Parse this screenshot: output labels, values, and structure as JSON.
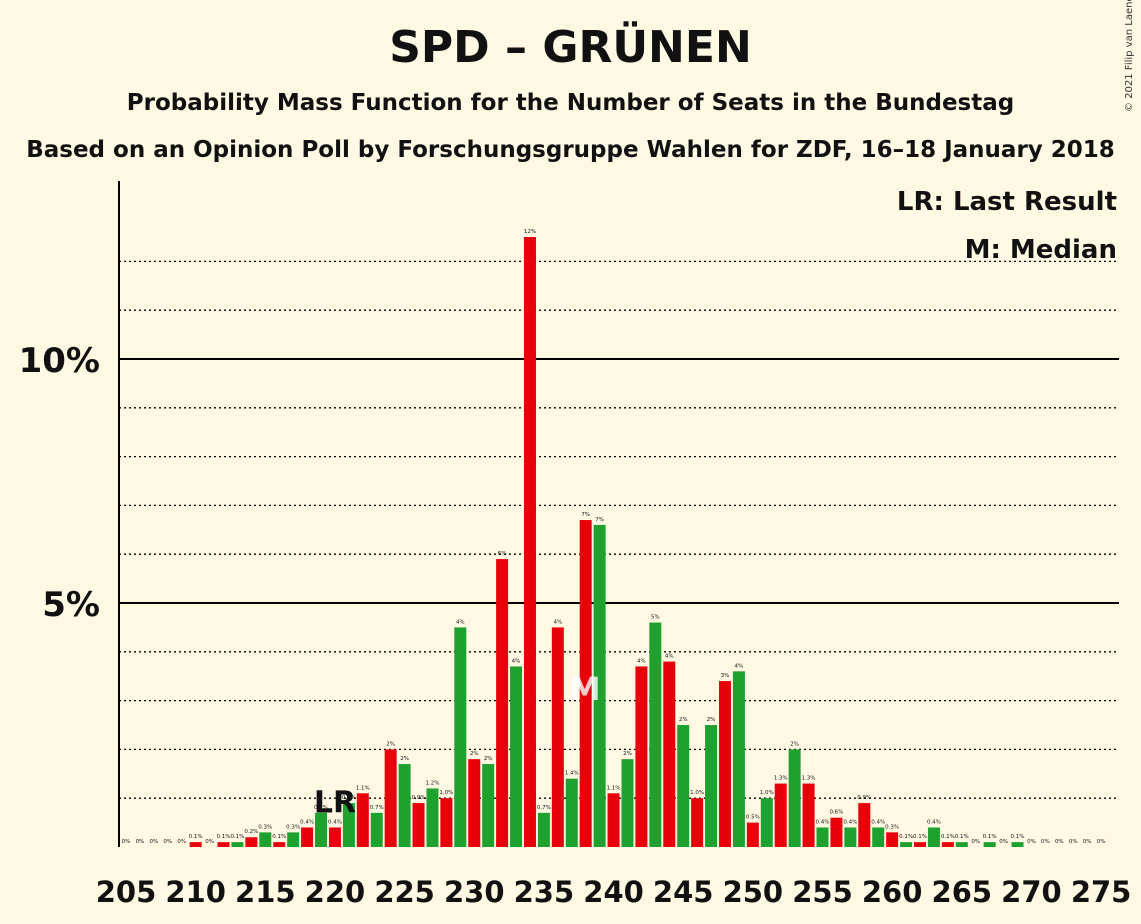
{
  "title": "SPD – GRÜNEN",
  "subtitle": "Probability Mass Function for the Number of Seats in the Bundestag",
  "subtitle2": "Based on an Opinion Poll by Forschungsgruppe Wahlen for ZDF, 16–18 January 2018",
  "copyright": "© 2021 Filip van Laenen",
  "legend": {
    "lr": "LR: Last Result",
    "m": "M: Median"
  },
  "colors": {
    "odd": "#e8000b",
    "even": "#1fa12f",
    "background": "#fff8e3"
  },
  "chart_data": {
    "type": "bar",
    "x_ticks": [
      "205",
      "210",
      "215",
      "220",
      "225",
      "230",
      "235",
      "240",
      "245",
      "250",
      "255",
      "260",
      "265",
      "270",
      "275"
    ],
    "y_ticks": [
      "5%",
      "10%"
    ],
    "ylim": [
      0,
      13.5
    ],
    "grid": true,
    "last_result": {
      "seat": 220,
      "label": "LR"
    },
    "median": {
      "seat": 238,
      "label": "M"
    },
    "seats": [
      205,
      206,
      207,
      208,
      209,
      210,
      211,
      212,
      213,
      214,
      215,
      216,
      217,
      218,
      219,
      220,
      221,
      222,
      223,
      224,
      225,
      226,
      227,
      228,
      229,
      230,
      231,
      232,
      233,
      234,
      235,
      236,
      237,
      238,
      239,
      240,
      241,
      242,
      243,
      244,
      245,
      246,
      247,
      248,
      249,
      250,
      251,
      252,
      253,
      254,
      255,
      256,
      257,
      258,
      259,
      260,
      261,
      262,
      263,
      264,
      265,
      266,
      267,
      268,
      269,
      270,
      271,
      272,
      273,
      274,
      275
    ],
    "values": [
      0,
      0,
      0,
      0,
      0,
      0.1,
      0,
      0.1,
      0.1,
      0.2,
      0.3,
      0.1,
      0.3,
      0.4,
      0.7,
      0.4,
      0.9,
      1.1,
      0.7,
      2,
      1.7,
      0.9,
      1.2,
      1.0,
      4.5,
      1.8,
      1.7,
      5.9,
      3.7,
      12.5,
      0.7,
      4.5,
      1.4,
      6.7,
      6.6,
      1.1,
      1.8,
      3.7,
      4.6,
      3.8,
      2.5,
      1.0,
      2.5,
      3.4,
      3.6,
      0.5,
      1.0,
      1.3,
      2.0,
      1.3,
      0.4,
      0.6,
      0.4,
      0.9,
      0.4,
      0.3,
      0.1,
      0.1,
      0.4,
      0.1,
      0.1,
      0,
      0.1,
      0,
      0.1,
      0,
      0,
      0,
      0,
      0,
      0
    ],
    "labels": [
      "0%",
      "0%",
      "0%",
      "0%",
      "0%",
      "0.1%",
      "0%",
      "0.1%",
      "0.1%",
      "0.2%",
      "0.3%",
      "0.1%",
      "0.3%",
      "0.4%",
      "0.7%",
      "0.4%",
      "0.9%",
      "1.1%",
      "0.7%",
      "2%",
      "2%",
      "0.9%",
      "1.2%",
      "1.0%",
      "4%",
      "2%",
      "2%",
      "6%",
      "4%",
      "12%",
      "0.7%",
      "4%",
      "1.4%",
      "7%",
      "7%",
      "1.1%",
      "2%",
      "4%",
      "5%",
      "4%",
      "2%",
      "1.0%",
      "2%",
      "3%",
      "4%",
      "0.5%",
      "1.0%",
      "1.3%",
      "2%",
      "1.3%",
      "0.4%",
      "0.6%",
      "0.4%",
      "0.9%",
      "0.4%",
      "0.3%",
      "0.1%",
      "0.1%",
      "0.4%",
      "0.1%",
      "0.1%",
      "0%",
      "0.1%",
      "0%",
      "0.1%",
      "0%",
      "0%",
      "0%",
      "0%",
      "0%",
      "0%"
    ]
  }
}
